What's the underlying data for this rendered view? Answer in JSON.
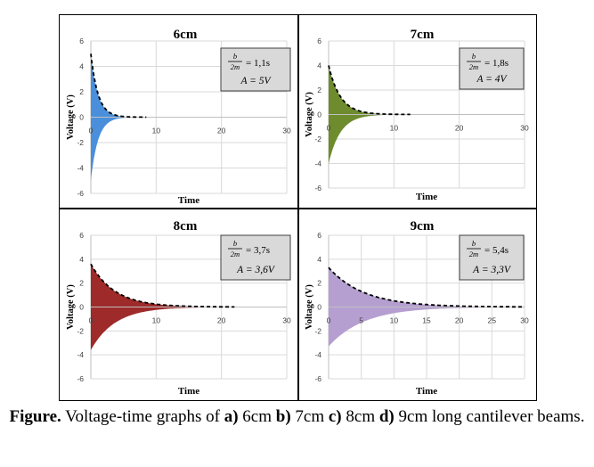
{
  "chart_data": [
    {
      "panel": "a",
      "type": "area",
      "title": "6cm",
      "xlabel": "Time",
      "ylabel": "Voltage (V)",
      "xlim": [
        0,
        30
      ],
      "ylim": [
        -6,
        6
      ],
      "x_ticks": [
        0,
        10,
        20,
        30
      ],
      "y_ticks": [
        -6,
        -4,
        -2,
        0,
        2,
        4,
        6
      ],
      "grid": true,
      "color": "#4a8fdc",
      "envelope": {
        "amplitude": 5,
        "decay_constant": 1.1,
        "end_time": 8.5
      },
      "annotation": {
        "ratio_num": "b",
        "ratio_den": "2m",
        "ratio_value": "= 1,1s",
        "amplitude_label": "A = 5V"
      }
    },
    {
      "panel": "b",
      "type": "area",
      "title": "7cm",
      "xlabel": "Time",
      "ylabel": "Voltage (V)",
      "xlim": [
        0,
        30
      ],
      "ylim": [
        -6,
        6
      ],
      "x_ticks": [
        0,
        10,
        20,
        30
      ],
      "y_ticks": [
        -6,
        -4,
        -2,
        0,
        2,
        4,
        6
      ],
      "grid": true,
      "color": "#6e8c2e",
      "envelope": {
        "amplitude": 4,
        "decay_constant": 1.8,
        "end_time": 12.5
      },
      "annotation": {
        "ratio_num": "b",
        "ratio_den": "2m",
        "ratio_value": "= 1,8s",
        "amplitude_label": "A = 4V"
      }
    },
    {
      "panel": "c",
      "type": "area",
      "title": "8cm",
      "xlabel": "Time",
      "ylabel": "Voltage (V)",
      "xlim": [
        0,
        30
      ],
      "ylim": [
        -6,
        6
      ],
      "x_ticks": [
        0,
        10,
        20,
        30
      ],
      "y_ticks": [
        -6,
        -4,
        -2,
        0,
        2,
        4,
        6
      ],
      "grid": true,
      "color": "#9e2a2a",
      "envelope": {
        "amplitude": 3.6,
        "decay_constant": 3.7,
        "end_time": 22
      },
      "annotation": {
        "ratio_num": "b",
        "ratio_den": "2m",
        "ratio_value": "= 3,7s",
        "amplitude_label": "A = 3,6V"
      }
    },
    {
      "panel": "d",
      "type": "area",
      "title": "9cm",
      "xlabel": "Time",
      "ylabel": "Voltage (V)",
      "xlim": [
        0,
        30
      ],
      "ylim": [
        -6,
        6
      ],
      "x_ticks": [
        0,
        5,
        10,
        15,
        20,
        25,
        30
      ],
      "y_ticks": [
        -6,
        -4,
        -2,
        0,
        2,
        4,
        6
      ],
      "grid": true,
      "color": "#b59fd0",
      "envelope": {
        "amplitude": 3.3,
        "decay_constant": 5.4,
        "end_time": 30
      },
      "annotation": {
        "ratio_num": "b",
        "ratio_den": "2m",
        "ratio_value": "= 5,4s",
        "amplitude_label": "A = 3,3V"
      }
    }
  ],
  "caption": {
    "figure_label": "Figure.",
    "text_before": " Voltage-time graphs of ",
    "items": [
      {
        "letter": "a)",
        "text": " 6cm "
      },
      {
        "letter": "b)",
        "text": " 7cm "
      },
      {
        "letter": "c)",
        "text": " 8cm "
      },
      {
        "letter": "d)",
        "text": " 9cm long cantilever beams."
      }
    ]
  }
}
